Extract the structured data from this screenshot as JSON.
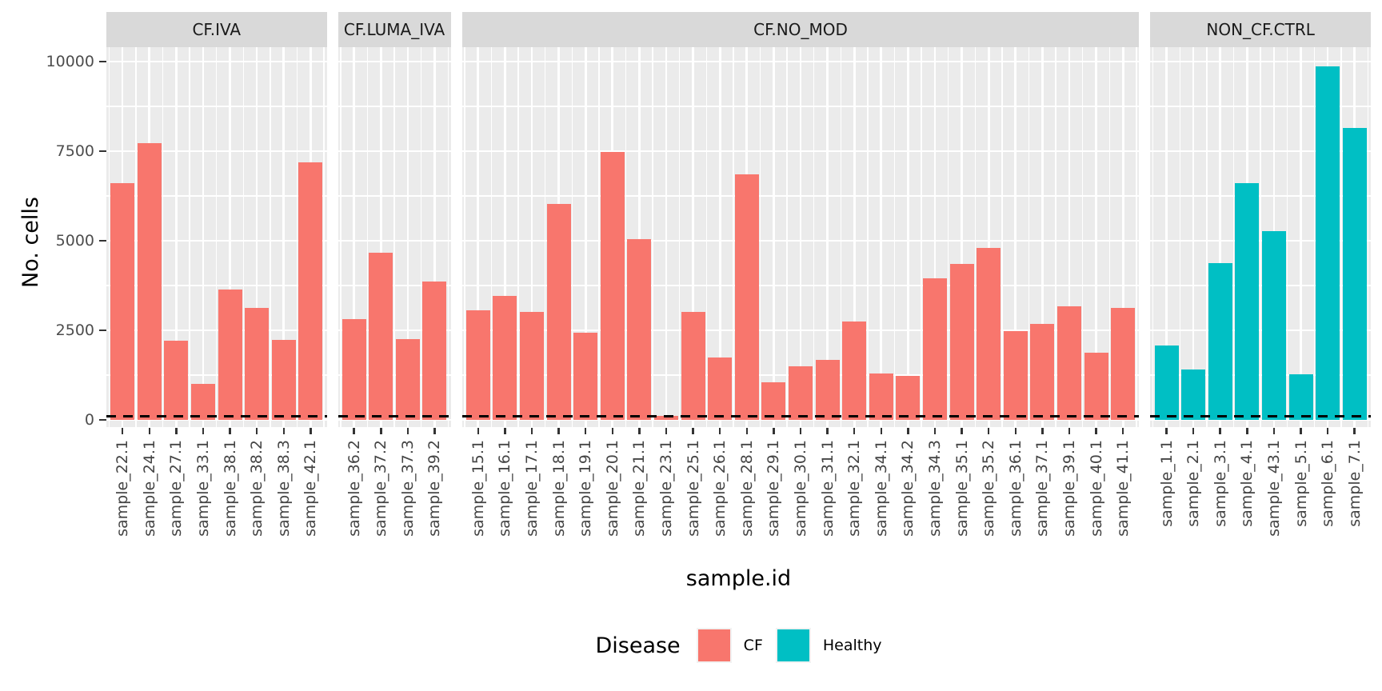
{
  "chart_data": {
    "type": "bar",
    "title": "",
    "xlabel": "sample.id",
    "ylabel": "No. cells",
    "ylim": [
      0,
      10000
    ],
    "y_major_ticks": [
      0,
      2500,
      5000,
      7500,
      10000
    ],
    "y_minor_gridlines": [
      1250,
      3750,
      6250,
      8750
    ],
    "grid": true,
    "reference_line": {
      "value": 100,
      "linetype": "dashed",
      "color": "#000000"
    },
    "legend": {
      "title": "Disease",
      "position": "bottom",
      "entries": [
        {
          "label": "CF",
          "color": "#F8766D"
        },
        {
          "label": "Healthy",
          "color": "#00BFC4"
        }
      ]
    },
    "theme": {
      "panel_bg": "#EBEBEB",
      "strip_bg": "#D9D9D9",
      "grid_color": "#FFFFFF",
      "axis_text_color": "#4D4D4D",
      "tick_color": "#333333",
      "title_color": "#000000"
    },
    "facets": [
      {
        "label": "CF.IVA",
        "group": "CF",
        "samples": [
          "sample_22.1",
          "sample_24.1",
          "sample_27.1",
          "sample_33.1",
          "sample_38.1",
          "sample_38.2",
          "sample_38.3",
          "sample_42.1"
        ],
        "values": [
          6600,
          7730,
          2200,
          1000,
          3630,
          3120,
          2240,
          7190
        ]
      },
      {
        "label": "CF.LUMA_IVA",
        "group": "CF",
        "samples": [
          "sample_36.2",
          "sample_37.2",
          "sample_37.3",
          "sample_39.2"
        ],
        "values": [
          2810,
          4660,
          2250,
          3870
        ]
      },
      {
        "label": "CF.NO_MOD",
        "group": "CF",
        "samples": [
          "sample_15.1",
          "sample_16.1",
          "sample_17.1",
          "sample_18.1",
          "sample_19.1",
          "sample_20.1",
          "sample_21.1",
          "sample_23.1",
          "sample_25.1",
          "sample_26.1",
          "sample_28.1",
          "sample_29.1",
          "sample_30.1",
          "sample_31.1",
          "sample_32.1",
          "sample_34.1",
          "sample_34.2",
          "sample_34.3",
          "sample_35.1",
          "sample_35.2",
          "sample_36.1",
          "sample_37.1",
          "sample_39.1",
          "sample_40.1",
          "sample_41.1"
        ],
        "values": [
          3060,
          3460,
          3010,
          6030,
          2440,
          7480,
          5040,
          120,
          3010,
          1740,
          6850,
          1060,
          1500,
          1670,
          2750,
          1290,
          1220,
          3960,
          4350,
          4790,
          2480,
          2680,
          3170,
          1880,
          3120
        ]
      },
      {
        "label": "NON_CF.CTRL",
        "group": "Healthy",
        "samples": [
          "sample_1.1",
          "sample_2.1",
          "sample_3.1",
          "sample_4.1",
          "sample_43.1",
          "sample_5.1",
          "sample_6.1",
          "sample_7.1"
        ],
        "values": [
          2080,
          1410,
          4370,
          6610,
          5270,
          1270,
          9860,
          8150
        ]
      }
    ]
  }
}
